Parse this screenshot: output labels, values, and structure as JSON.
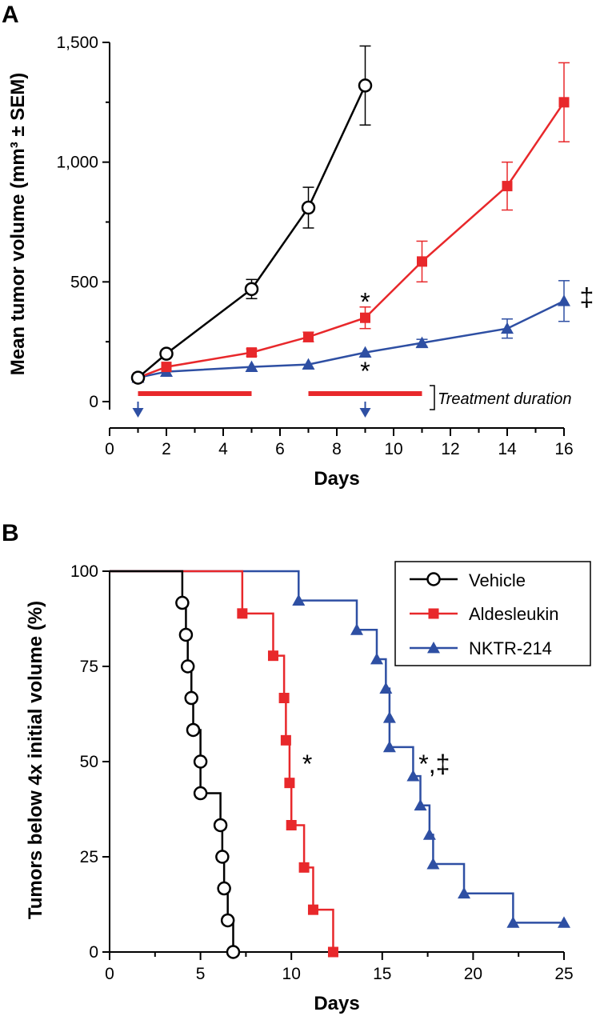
{
  "chart_data": [
    {
      "panel": "A",
      "type": "line",
      "xlabel": "Days",
      "ylabel": "Mean tumor volume (mm³ ± SEM)",
      "xlim": [
        0,
        16
      ],
      "ylim": [
        0,
        1500
      ],
      "xticks": [
        "0",
        "2",
        "4",
        "6",
        "8",
        "10",
        "12",
        "14",
        "16"
      ],
      "yticks": [
        "0",
        "500",
        "1,000",
        "1,500"
      ],
      "series": [
        {
          "key": "vehicle",
          "color": "#000000",
          "marker": "open-circle",
          "x": [
            1,
            2,
            5,
            7,
            9
          ],
          "y": [
            100,
            200,
            470,
            810,
            1320
          ],
          "err": [
            12,
            15,
            40,
            85,
            165
          ]
        },
        {
          "key": "aldesleukin",
          "color": "#e8282b",
          "marker": "square",
          "x": [
            1,
            2,
            5,
            7,
            9,
            11,
            14,
            16
          ],
          "y": [
            100,
            145,
            205,
            270,
            350,
            585,
            900,
            1250
          ],
          "err": [
            10,
            12,
            15,
            20,
            45,
            85,
            100,
            165
          ]
        },
        {
          "key": "nktr214",
          "color": "#2e4fa3",
          "marker": "triangle",
          "x": [
            1,
            2,
            5,
            7,
            9,
            11,
            14,
            16
          ],
          "y": [
            100,
            125,
            145,
            155,
            205,
            245,
            305,
            420
          ],
          "err": [
            8,
            10,
            10,
            10,
            12,
            15,
            40,
            85
          ]
        }
      ],
      "treatment_bars": [
        [
          1,
          5
        ],
        [
          7,
          11
        ]
      ],
      "dose_arrows_x": [
        1,
        9
      ],
      "annotations": [
        {
          "text": "*",
          "x": 9,
          "y": 420,
          "color": "#000000"
        },
        {
          "text": "*",
          "x": 9,
          "y": 130,
          "color": "#000000"
        },
        {
          "text": "‡",
          "x": 16.8,
          "y": 440,
          "color": "#000000"
        }
      ],
      "treatment_label": "Treatment duration"
    },
    {
      "panel": "B",
      "type": "line",
      "step": true,
      "xlabel": "Days",
      "ylabel": "Tumors below 4x initial volume (%)",
      "xlim": [
        0,
        25
      ],
      "ylim": [
        0,
        100
      ],
      "xticks": [
        "0",
        "5",
        "10",
        "15",
        "20",
        "25"
      ],
      "yticks": [
        "0",
        "25",
        "50",
        "75",
        "100"
      ],
      "legend_position": "top-right",
      "series": [
        {
          "key": "vehicle",
          "name": "Vehicle",
          "color": "#000000",
          "marker": "open-circle",
          "x": [
            0,
            4,
            4.2,
            4.3,
            4.5,
            4.6,
            5,
            6,
            6.2,
            6.3,
            6.5,
            6.8
          ],
          "y": [
            100,
            91.7,
            83.3,
            75,
            66.7,
            58.3,
            50,
            41.7,
            33.3,
            25,
            16.7,
            8.3
          ],
          "censor_x": [
            6.8
          ],
          "censor_y": [
            0
          ],
          "markers": [
            [
              4,
              91.7
            ],
            [
              4.2,
              83.3
            ],
            [
              4.3,
              75
            ],
            [
              4.5,
              66.7
            ],
            [
              4.6,
              58.3
            ],
            [
              5,
              50
            ],
            [
              5,
              41.7
            ],
            [
              6.1,
              33.3
            ],
            [
              6.2,
              25
            ],
            [
              6.3,
              16.7
            ],
            [
              6.5,
              8.3
            ],
            [
              6.8,
              0
            ]
          ]
        },
        {
          "key": "aldesleukin",
          "name": "Aldesleukin",
          "color": "#e8282b",
          "marker": "square",
          "markers": [
            [
              7.3,
              88.9
            ],
            [
              9,
              77.8
            ],
            [
              9.6,
              66.7
            ],
            [
              9.7,
              55.6
            ],
            [
              9.9,
              44.4
            ],
            [
              10,
              33.3
            ],
            [
              10.7,
              22.2
            ],
            [
              11.2,
              11.1
            ],
            [
              12.3,
              0
            ]
          ]
        },
        {
          "key": "nktr214",
          "name": "NKTR-214",
          "color": "#2e4fa3",
          "marker": "triangle",
          "markers": [
            [
              10.4,
              92.3
            ],
            [
              13.6,
              84.6
            ],
            [
              14.7,
              76.9
            ],
            [
              15.2,
              69.2
            ],
            [
              15.4,
              61.5
            ],
            [
              15.4,
              53.8
            ],
            [
              16.7,
              46.2
            ],
            [
              17.1,
              38.5
            ],
            [
              17.6,
              30.8
            ],
            [
              17.8,
              23.1
            ],
            [
              19.5,
              15.4
            ],
            [
              22.2,
              7.7
            ],
            [
              25,
              7.7
            ]
          ]
        }
      ],
      "annotations": [
        {
          "text": "*",
          "x": 10.6,
          "y": 50,
          "color": "#000000"
        },
        {
          "text": "*,‡",
          "x": 17,
          "y": 50,
          "color": "#000000"
        }
      ]
    }
  ],
  "labels": {
    "panel_a": "A",
    "panel_b": "B"
  }
}
